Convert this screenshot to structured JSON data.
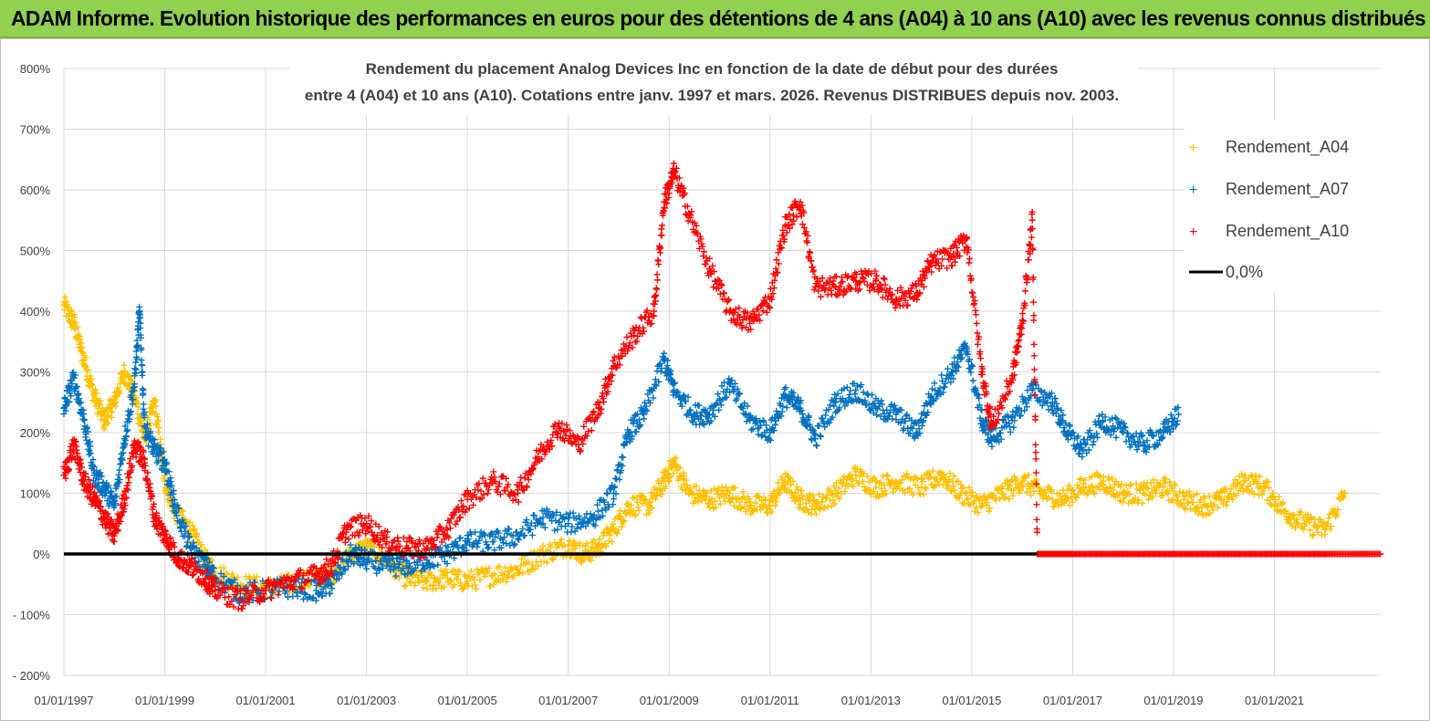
{
  "banner": {
    "title": "ADAM Informe. Evolution historique des performances en euros pour des détentions de 4 ans (A04) à 10 ans (A10) avec les revenus connus distribués"
  },
  "colors": {
    "banner_bg": "#92d050",
    "A04": "#ffc000",
    "A07": "#0070c0",
    "A10": "#ff0000",
    "zero_line": "#000000",
    "grid": "#d9d9d9"
  },
  "chart_data": {
    "type": "scatter",
    "title_line1": "Rendement du placement Analog Devices Inc en fonction de la date de début pour des durées",
    "title_line2": "entre 4 (A04) et 10 ans (A10).  Cotations entre janv. 1997 et mars. 2026. Revenus DISTRIBUES depuis nov. 2003.",
    "xlabel": "",
    "ylabel": "",
    "x_range": [
      "1997-01-01",
      "2023-02-01"
    ],
    "y_range": [
      -200,
      800
    ],
    "y_ticks": [
      "800%",
      "700%",
      "600%",
      "500%",
      "400%",
      "300%",
      "200%",
      "100%",
      "0%",
      "- 100%",
      "- 200%"
    ],
    "x_ticks": [
      "01/01/1997",
      "01/01/1999",
      "01/01/2001",
      "01/01/2003",
      "01/01/2005",
      "01/01/2007",
      "01/01/2009",
      "01/01/2011",
      "01/01/2013",
      "01/01/2015",
      "01/01/2017",
      "01/01/2019",
      "01/01/2021"
    ],
    "grid": true,
    "legend_position": "top-right",
    "series": [
      {
        "name": "Rendement_A04",
        "marker": "+",
        "color": "#ffc000",
        "points": [
          [
            1997.0,
            410
          ],
          [
            1997.2,
            380
          ],
          [
            1997.4,
            320
          ],
          [
            1997.6,
            260
          ],
          [
            1997.8,
            220
          ],
          [
            1998.0,
            250
          ],
          [
            1998.2,
            300
          ],
          [
            1998.4,
            260
          ],
          [
            1998.6,
            190
          ],
          [
            1998.8,
            250
          ],
          [
            1999.0,
            120
          ],
          [
            1999.2,
            70
          ],
          [
            1999.5,
            40
          ],
          [
            1999.8,
            -10
          ],
          [
            2000.0,
            -30
          ],
          [
            2000.5,
            -50
          ],
          [
            2001.0,
            -55
          ],
          [
            2001.5,
            -50
          ],
          [
            2002.0,
            -40
          ],
          [
            2002.3,
            -35
          ],
          [
            2002.7,
            0
          ],
          [
            2003.0,
            10
          ],
          [
            2003.4,
            -10
          ],
          [
            2003.8,
            -40
          ],
          [
            2004.2,
            -45
          ],
          [
            2004.6,
            -40
          ],
          [
            2005.0,
            -45
          ],
          [
            2005.5,
            -35
          ],
          [
            2006.0,
            -25
          ],
          [
            2006.5,
            0
          ],
          [
            2007.0,
            15
          ],
          [
            2007.3,
            0
          ],
          [
            2007.6,
            10
          ],
          [
            2007.9,
            40
          ],
          [
            2008.2,
            80
          ],
          [
            2008.6,
            80
          ],
          [
            2008.9,
            120
          ],
          [
            2009.1,
            150
          ],
          [
            2009.4,
            100
          ],
          [
            2009.8,
            90
          ],
          [
            2010.2,
            100
          ],
          [
            2010.6,
            80
          ],
          [
            2011.0,
            80
          ],
          [
            2011.3,
            120
          ],
          [
            2011.6,
            90
          ],
          [
            2011.9,
            80
          ],
          [
            2012.3,
            100
          ],
          [
            2012.7,
            130
          ],
          [
            2013.1,
            110
          ],
          [
            2013.5,
            120
          ],
          [
            2014.0,
            110
          ],
          [
            2014.4,
            130
          ],
          [
            2014.8,
            100
          ],
          [
            2015.2,
            80
          ],
          [
            2015.6,
            100
          ],
          [
            2016.0,
            120
          ],
          [
            2016.4,
            100
          ],
          [
            2016.8,
            90
          ],
          [
            2017.2,
            110
          ],
          [
            2017.6,
            120
          ],
          [
            2018.0,
            100
          ],
          [
            2018.4,
            100
          ],
          [
            2018.8,
            110
          ],
          [
            2019.2,
            90
          ],
          [
            2019.6,
            80
          ],
          [
            2020.0,
            90
          ],
          [
            2020.4,
            120
          ],
          [
            2020.8,
            110
          ],
          [
            2021.2,
            70
          ],
          [
            2021.6,
            50
          ],
          [
            2022.0,
            40
          ],
          [
            2022.4,
            100
          ]
        ]
      },
      {
        "name": "Rendement_A07",
        "marker": "+",
        "color": "#0070c0",
        "points": [
          [
            1997.0,
            240
          ],
          [
            1997.2,
            290
          ],
          [
            1997.4,
            220
          ],
          [
            1997.6,
            130
          ],
          [
            1997.8,
            110
          ],
          [
            1998.0,
            80
          ],
          [
            1998.2,
            190
          ],
          [
            1998.4,
            280
          ],
          [
            1998.5,
            400
          ],
          [
            1998.6,
            210
          ],
          [
            1998.8,
            170
          ],
          [
            1999.0,
            150
          ],
          [
            1999.2,
            80
          ],
          [
            1999.5,
            10
          ],
          [
            1999.8,
            -20
          ],
          [
            2000.0,
            -40
          ],
          [
            2000.5,
            -65
          ],
          [
            2001.0,
            -60
          ],
          [
            2001.5,
            -55
          ],
          [
            2002.0,
            -60
          ],
          [
            2002.3,
            -50
          ],
          [
            2002.7,
            0
          ],
          [
            2003.0,
            -10
          ],
          [
            2003.4,
            -20
          ],
          [
            2003.8,
            -20
          ],
          [
            2004.2,
            -10
          ],
          [
            2004.6,
            0
          ],
          [
            2005.0,
            20
          ],
          [
            2005.5,
            20
          ],
          [
            2006.0,
            30
          ],
          [
            2006.5,
            60
          ],
          [
            2007.0,
            50
          ],
          [
            2007.5,
            60
          ],
          [
            2007.9,
            100
          ],
          [
            2008.2,
            200
          ],
          [
            2008.5,
            230
          ],
          [
            2008.9,
            320
          ],
          [
            2009.1,
            270
          ],
          [
            2009.5,
            230
          ],
          [
            2009.8,
            230
          ],
          [
            2010.2,
            280
          ],
          [
            2010.6,
            220
          ],
          [
            2011.0,
            200
          ],
          [
            2011.3,
            260
          ],
          [
            2011.6,
            240
          ],
          [
            2011.9,
            190
          ],
          [
            2012.3,
            250
          ],
          [
            2012.7,
            270
          ],
          [
            2013.1,
            240
          ],
          [
            2013.5,
            230
          ],
          [
            2013.9,
            200
          ],
          [
            2014.2,
            260
          ],
          [
            2014.6,
            300
          ],
          [
            2014.9,
            340
          ],
          [
            2015.2,
            220
          ],
          [
            2015.4,
            190
          ],
          [
            2015.8,
            220
          ],
          [
            2016.2,
            270
          ],
          [
            2016.6,
            250
          ],
          [
            2016.9,
            200
          ],
          [
            2017.2,
            170
          ],
          [
            2017.6,
            220
          ],
          [
            2018.0,
            200
          ],
          [
            2018.4,
            180
          ],
          [
            2018.8,
            200
          ],
          [
            2019.1,
            230
          ]
        ]
      },
      {
        "name": "Rendement_A10",
        "marker": "+",
        "color": "#ff0000",
        "points": [
          [
            1997.0,
            130
          ],
          [
            1997.2,
            180
          ],
          [
            1997.4,
            120
          ],
          [
            1997.6,
            90
          ],
          [
            1997.8,
            60
          ],
          [
            1998.0,
            30
          ],
          [
            1998.2,
            90
          ],
          [
            1998.4,
            180
          ],
          [
            1998.6,
            150
          ],
          [
            1998.8,
            60
          ],
          [
            1999.0,
            30
          ],
          [
            1999.2,
            0
          ],
          [
            1999.5,
            -20
          ],
          [
            1999.8,
            -40
          ],
          [
            2000.0,
            -60
          ],
          [
            2000.5,
            -75
          ],
          [
            2001.0,
            -60
          ],
          [
            2001.5,
            -45
          ],
          [
            2002.0,
            -35
          ],
          [
            2002.3,
            -20
          ],
          [
            2002.6,
            40
          ],
          [
            2003.0,
            50
          ],
          [
            2003.4,
            20
          ],
          [
            2003.8,
            10
          ],
          [
            2004.2,
            10
          ],
          [
            2004.6,
            40
          ],
          [
            2005.0,
            90
          ],
          [
            2005.5,
            120
          ],
          [
            2006.0,
            100
          ],
          [
            2006.4,
            160
          ],
          [
            2006.8,
            210
          ],
          [
            2007.2,
            180
          ],
          [
            2007.6,
            240
          ],
          [
            2007.9,
            310
          ],
          [
            2008.3,
            360
          ],
          [
            2008.7,
            400
          ],
          [
            2008.9,
            580
          ],
          [
            2009.1,
            630
          ],
          [
            2009.4,
            560
          ],
          [
            2009.8,
            470
          ],
          [
            2010.2,
            400
          ],
          [
            2010.6,
            380
          ],
          [
            2011.0,
            420
          ],
          [
            2011.3,
            540
          ],
          [
            2011.6,
            580
          ],
          [
            2011.9,
            440
          ],
          [
            2012.3,
            440
          ],
          [
            2012.7,
            450
          ],
          [
            2013.1,
            450
          ],
          [
            2013.5,
            420
          ],
          [
            2013.9,
            430
          ],
          [
            2014.2,
            480
          ],
          [
            2014.6,
            490
          ],
          [
            2014.9,
            520
          ],
          [
            2015.2,
            300
          ],
          [
            2015.4,
            210
          ],
          [
            2015.8,
            290
          ],
          [
            2016.0,
            380
          ],
          [
            2016.2,
            550
          ],
          [
            2016.3,
            0
          ],
          [
            2017.0,
            0
          ],
          [
            2018.0,
            0
          ],
          [
            2019.0,
            0
          ],
          [
            2020.0,
            0
          ],
          [
            2021.0,
            0
          ],
          [
            2022.0,
            0
          ],
          [
            2023.1,
            0
          ]
        ]
      },
      {
        "name": "0,0%",
        "type": "line",
        "color": "#000000",
        "points": [
          [
            1997.0,
            0
          ],
          [
            2016.3,
            0
          ]
        ]
      }
    ]
  }
}
